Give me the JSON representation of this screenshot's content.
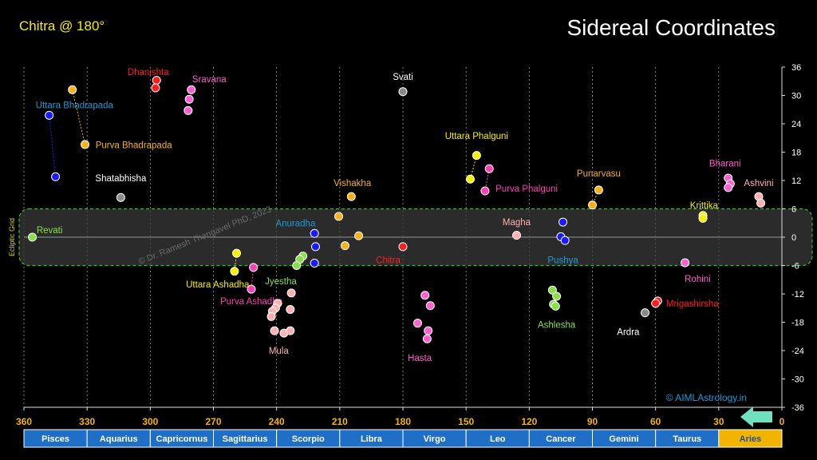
{
  "header": {
    "top_left": "Chitra @ 180°",
    "title": "Sidereal Coordinates",
    "watermark": "© Dr. Ramesh Thangavel PhD, 2023",
    "credit": "© AIMLAstrology.in",
    "band_label": "Ecliptic Grid"
  },
  "colors": {
    "background": "#000000",
    "band_fill": "#3a3a3a",
    "band_border": "#2fbf2f",
    "zodiac_bar": "#1f6fc7",
    "zodiac_active": "#f2b400",
    "arrow": "#6fe0c0",
    "top_left_text": "#f5f000"
  },
  "chart_data": {
    "type": "scatter",
    "title": "Sidereal Coordinates",
    "xlabel": "",
    "ylabel": "",
    "xlim": [
      360,
      0
    ],
    "ylim": [
      -36,
      36
    ],
    "x_ticks": [
      360,
      330,
      300,
      270,
      240,
      210,
      180,
      150,
      120,
      90,
      60,
      30,
      0
    ],
    "y_ticks": [
      36,
      30,
      24,
      18,
      12,
      6,
      0,
      -6,
      -12,
      -18,
      -24,
      -30,
      -36
    ],
    "band": [
      -6,
      6
    ],
    "signs": [
      {
        "name": "Pisces",
        "active": false
      },
      {
        "name": "Aquarius",
        "active": false
      },
      {
        "name": "Capricornus",
        "active": false
      },
      {
        "name": "Sagittarius",
        "active": false
      },
      {
        "name": "Scorpio",
        "active": false
      },
      {
        "name": "Libra",
        "active": false
      },
      {
        "name": "Virgo",
        "active": false
      },
      {
        "name": "Leo",
        "active": false
      },
      {
        "name": "Cancer",
        "active": false
      },
      {
        "name": "Gemini",
        "active": false
      },
      {
        "name": "Taurus",
        "active": false
      },
      {
        "name": "Aries",
        "active": true
      }
    ],
    "series": [
      {
        "name": "Revati",
        "color": "#88e048",
        "points": [
          [
            356,
            0
          ]
        ],
        "label_at": [
          354,
          1.5
        ],
        "anchor": "start"
      },
      {
        "name": "Uttara Bhadrapada",
        "color": "#1a1aff",
        "points": [
          [
            348,
            25.8
          ],
          [
            345,
            12.8
          ]
        ],
        "lines": true,
        "label_at": [
          336,
          28
        ],
        "anchor": "middle",
        "label_color": "#1e9ad6"
      },
      {
        "name": "Purva Bhadrapada",
        "color": "#f7b21a",
        "points": [
          [
            337,
            31.2
          ],
          [
            331,
            19.6
          ]
        ],
        "lines": true,
        "label_at": [
          326,
          19.5
        ],
        "anchor": "start"
      },
      {
        "name": "Shatabhisha",
        "color": "#8a8a8a",
        "points": [
          [
            314,
            8.4
          ]
        ],
        "label_at": [
          314,
          12.5
        ],
        "anchor": "middle",
        "label_color": "#ffffff"
      },
      {
        "name": "Dhanishta",
        "color": "#ff1e1e",
        "points": [
          [
            297,
            33.2
          ],
          [
            297.5,
            31.6
          ]
        ],
        "label_at": [
          301,
          35
        ],
        "anchor": "middle"
      },
      {
        "name": "Sravana",
        "color": "#ff5fcf",
        "points": [
          [
            280.5,
            31.2
          ],
          [
            281.5,
            29.2
          ],
          [
            282,
            26.8
          ]
        ],
        "label_at": [
          272,
          33.5
        ],
        "anchor": "middle"
      },
      {
        "name": "Uttara Ashadha",
        "color": "#f5f000",
        "points": [
          [
            259,
            -3.4
          ],
          [
            260,
            -7.2
          ]
        ],
        "lines": true,
        "label_at": [
          268,
          -10
        ],
        "anchor": "middle"
      },
      {
        "name": "Purva Ashadha",
        "color": "#ff3fb5",
        "points": [
          [
            251,
            -6.4
          ],
          [
            252,
            -11
          ]
        ],
        "lines": true,
        "label_at": [
          252,
          -13.5
        ],
        "anchor": "middle"
      },
      {
        "name": "Mula",
        "color": "#ffb0b0",
        "points": [
          [
            239.5,
            -14
          ],
          [
            240.5,
            -15
          ],
          [
            242,
            -15.7
          ],
          [
            242.5,
            -16.8
          ],
          [
            233.5,
            -15.3
          ],
          [
            233,
            -11.8
          ],
          [
            241,
            -19.8
          ],
          [
            236.5,
            -20.3
          ],
          [
            233.5,
            -19.8
          ]
        ],
        "label_at": [
          239,
          -24
        ],
        "anchor": "middle"
      },
      {
        "name": "Jyestha",
        "color": "#88e048",
        "points": [
          [
            227.5,
            -4
          ],
          [
            229,
            -4.7
          ],
          [
            230.5,
            -6
          ]
        ],
        "label_at": [
          238,
          -9.3
        ],
        "anchor": "middle"
      },
      {
        "name": "Anuradha",
        "color": "#1a1aff",
        "points": [
          [
            222,
            0.8
          ],
          [
            221.5,
            -2
          ],
          [
            222,
            -5.5
          ]
        ],
        "label_at": [
          231,
          3
        ],
        "anchor": "middle",
        "label_color": "#1e9ad6"
      },
      {
        "name": "Vishakha",
        "color": "#f7b21a",
        "points": [
          [
            210.5,
            4.4
          ],
          [
            204.5,
            8.6
          ],
          [
            201,
            0.3
          ],
          [
            207.5,
            -1.8
          ]
        ],
        "label_at": [
          204,
          11.5
        ],
        "anchor": "middle"
      },
      {
        "name": "Svati",
        "color": "#8a8a8a",
        "points": [
          [
            180,
            30.8
          ]
        ],
        "label_at": [
          180,
          34
        ],
        "anchor": "middle",
        "label_color": "#ffffff"
      },
      {
        "name": "Chitra",
        "color": "#ff1e1e",
        "points": [
          [
            180,
            -2
          ]
        ],
        "label_at": [
          187,
          -4.8
        ],
        "anchor": "middle"
      },
      {
        "name": "Hasta",
        "color": "#ff5fcf",
        "points": [
          [
            169.5,
            -12.3
          ],
          [
            167,
            -14.5
          ],
          [
            173,
            -18.2
          ],
          [
            168,
            -19.8
          ],
          [
            168.5,
            -21.5
          ]
        ],
        "label_at": [
          172,
          -25.5
        ],
        "anchor": "middle"
      },
      {
        "name": "Uttara Phalguni",
        "color": "#f5f000",
        "points": [
          [
            145,
            17.3
          ],
          [
            148,
            12.3
          ]
        ],
        "lines": true,
        "label_at": [
          145,
          21.5
        ],
        "anchor": "middle"
      },
      {
        "name": "Purva Phalguni",
        "color": "#ff3fb5",
        "points": [
          [
            139,
            14.5
          ],
          [
            141,
            9.8
          ]
        ],
        "lines": true,
        "label_at": [
          136,
          10.3
        ],
        "anchor": "start"
      },
      {
        "name": "Magha",
        "color": "#ffb0b0",
        "points": [
          [
            126,
            0.4
          ]
        ],
        "label_at": [
          126,
          3.2
        ],
        "anchor": "middle"
      },
      {
        "name": "Pushya",
        "color": "#1a1aff",
        "points": [
          [
            104,
            3.2
          ],
          [
            105,
            0.1
          ],
          [
            103,
            -0.7
          ]
        ],
        "label_at": [
          104,
          -4.8
        ],
        "anchor": "middle",
        "label_color": "#1e9ad6"
      },
      {
        "name": "Ashlesha",
        "color": "#88e048",
        "points": [
          [
            109,
            -11.2
          ],
          [
            107,
            -12.5
          ],
          [
            108.5,
            -14.2
          ],
          [
            107.5,
            -14.6
          ]
        ],
        "label_at": [
          107,
          -18.5
        ],
        "anchor": "middle"
      },
      {
        "name": "Punarvasu",
        "color": "#f7b21a",
        "points": [
          [
            87,
            10
          ],
          [
            90,
            6.8
          ]
        ],
        "lines": true,
        "label_at": [
          87,
          13.5
        ],
        "anchor": "middle"
      },
      {
        "name": "Ardra",
        "color": "#8a8a8a",
        "points": [
          [
            65,
            -16
          ]
        ],
        "label_at": [
          73,
          -20
        ],
        "anchor": "middle",
        "label_color": "#ffffff"
      },
      {
        "name": "Mrigashirsha",
        "color": "#ff1e1e",
        "points": [
          [
            59,
            -13.5
          ],
          [
            60,
            -14
          ]
        ],
        "label_at": [
          55,
          -14
        ],
        "anchor": "start"
      },
      {
        "name": "Rohini",
        "color": "#ff5fcf",
        "points": [
          [
            46,
            -5.4
          ]
        ],
        "label_at": [
          40,
          -8.8
        ],
        "anchor": "middle",
        "label_color": "#ff5fcf"
      },
      {
        "name": "Krittika",
        "color": "#f5f000",
        "points": [
          [
            37.5,
            4.6
          ],
          [
            37.5,
            4
          ]
        ],
        "label_at": [
          37,
          6.8
        ],
        "anchor": "middle"
      },
      {
        "name": "Bharani",
        "color": "#ff5fcf",
        "points": [
          [
            25.5,
            12.5
          ],
          [
            24.5,
            11.3
          ],
          [
            25.5,
            10.5
          ]
        ],
        "label_at": [
          27,
          15.6
        ],
        "anchor": "middle"
      },
      {
        "name": "Ashvini",
        "color": "#ffb0b0",
        "points": [
          [
            11,
            8.6
          ],
          [
            10,
            7.2
          ]
        ],
        "label_at": [
          11,
          11.5
        ],
        "anchor": "middle",
        "label_color": "#ffb0b0"
      }
    ]
  }
}
